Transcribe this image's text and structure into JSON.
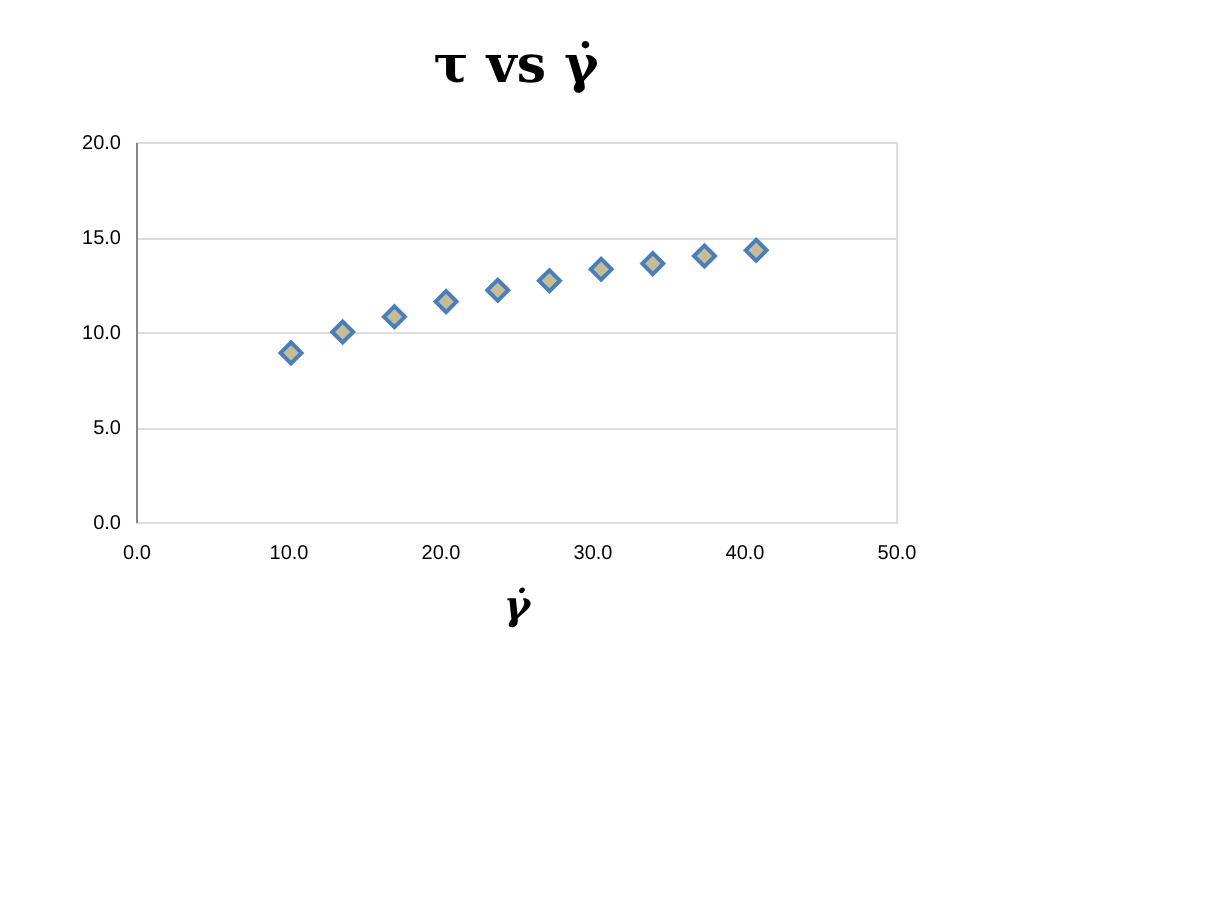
{
  "chart_data": {
    "type": "scatter",
    "title": "τ vs γ̇",
    "xlabel": "γ̇",
    "x": [
      10.2,
      13.6,
      17.0,
      20.4,
      23.8,
      27.2,
      30.6,
      34.0,
      37.4,
      40.8
    ],
    "series": [
      {
        "color": "#c4bd97",
        "values": [
          8.9,
          10.0,
          10.8,
          11.6,
          12.2,
          12.7,
          13.3,
          13.6,
          14.0,
          14.3
        ]
      }
    ],
    "xlim": [
      0,
      50
    ],
    "xticks": [
      {
        "value": 0,
        "label": "0.0"
      },
      {
        "value": 10,
        "label": "10.0"
      },
      {
        "value": 20,
        "label": "20.0"
      },
      {
        "value": 30,
        "label": "30.0"
      },
      {
        "value": 40,
        "label": "40.0"
      },
      {
        "value": 50,
        "label": "50.0"
      }
    ],
    "ylim": [
      0,
      20
    ],
    "yticks": [
      {
        "value": 0,
        "label": "0.0"
      },
      {
        "value": 5,
        "label": "5.0"
      },
      {
        "value": 10,
        "label": "10.0"
      },
      {
        "value": 15,
        "label": "15.0"
      },
      {
        "value": 20,
        "label": "20.0"
      }
    ],
    "grid": "y",
    "marker": "diamond",
    "legend": false
  }
}
